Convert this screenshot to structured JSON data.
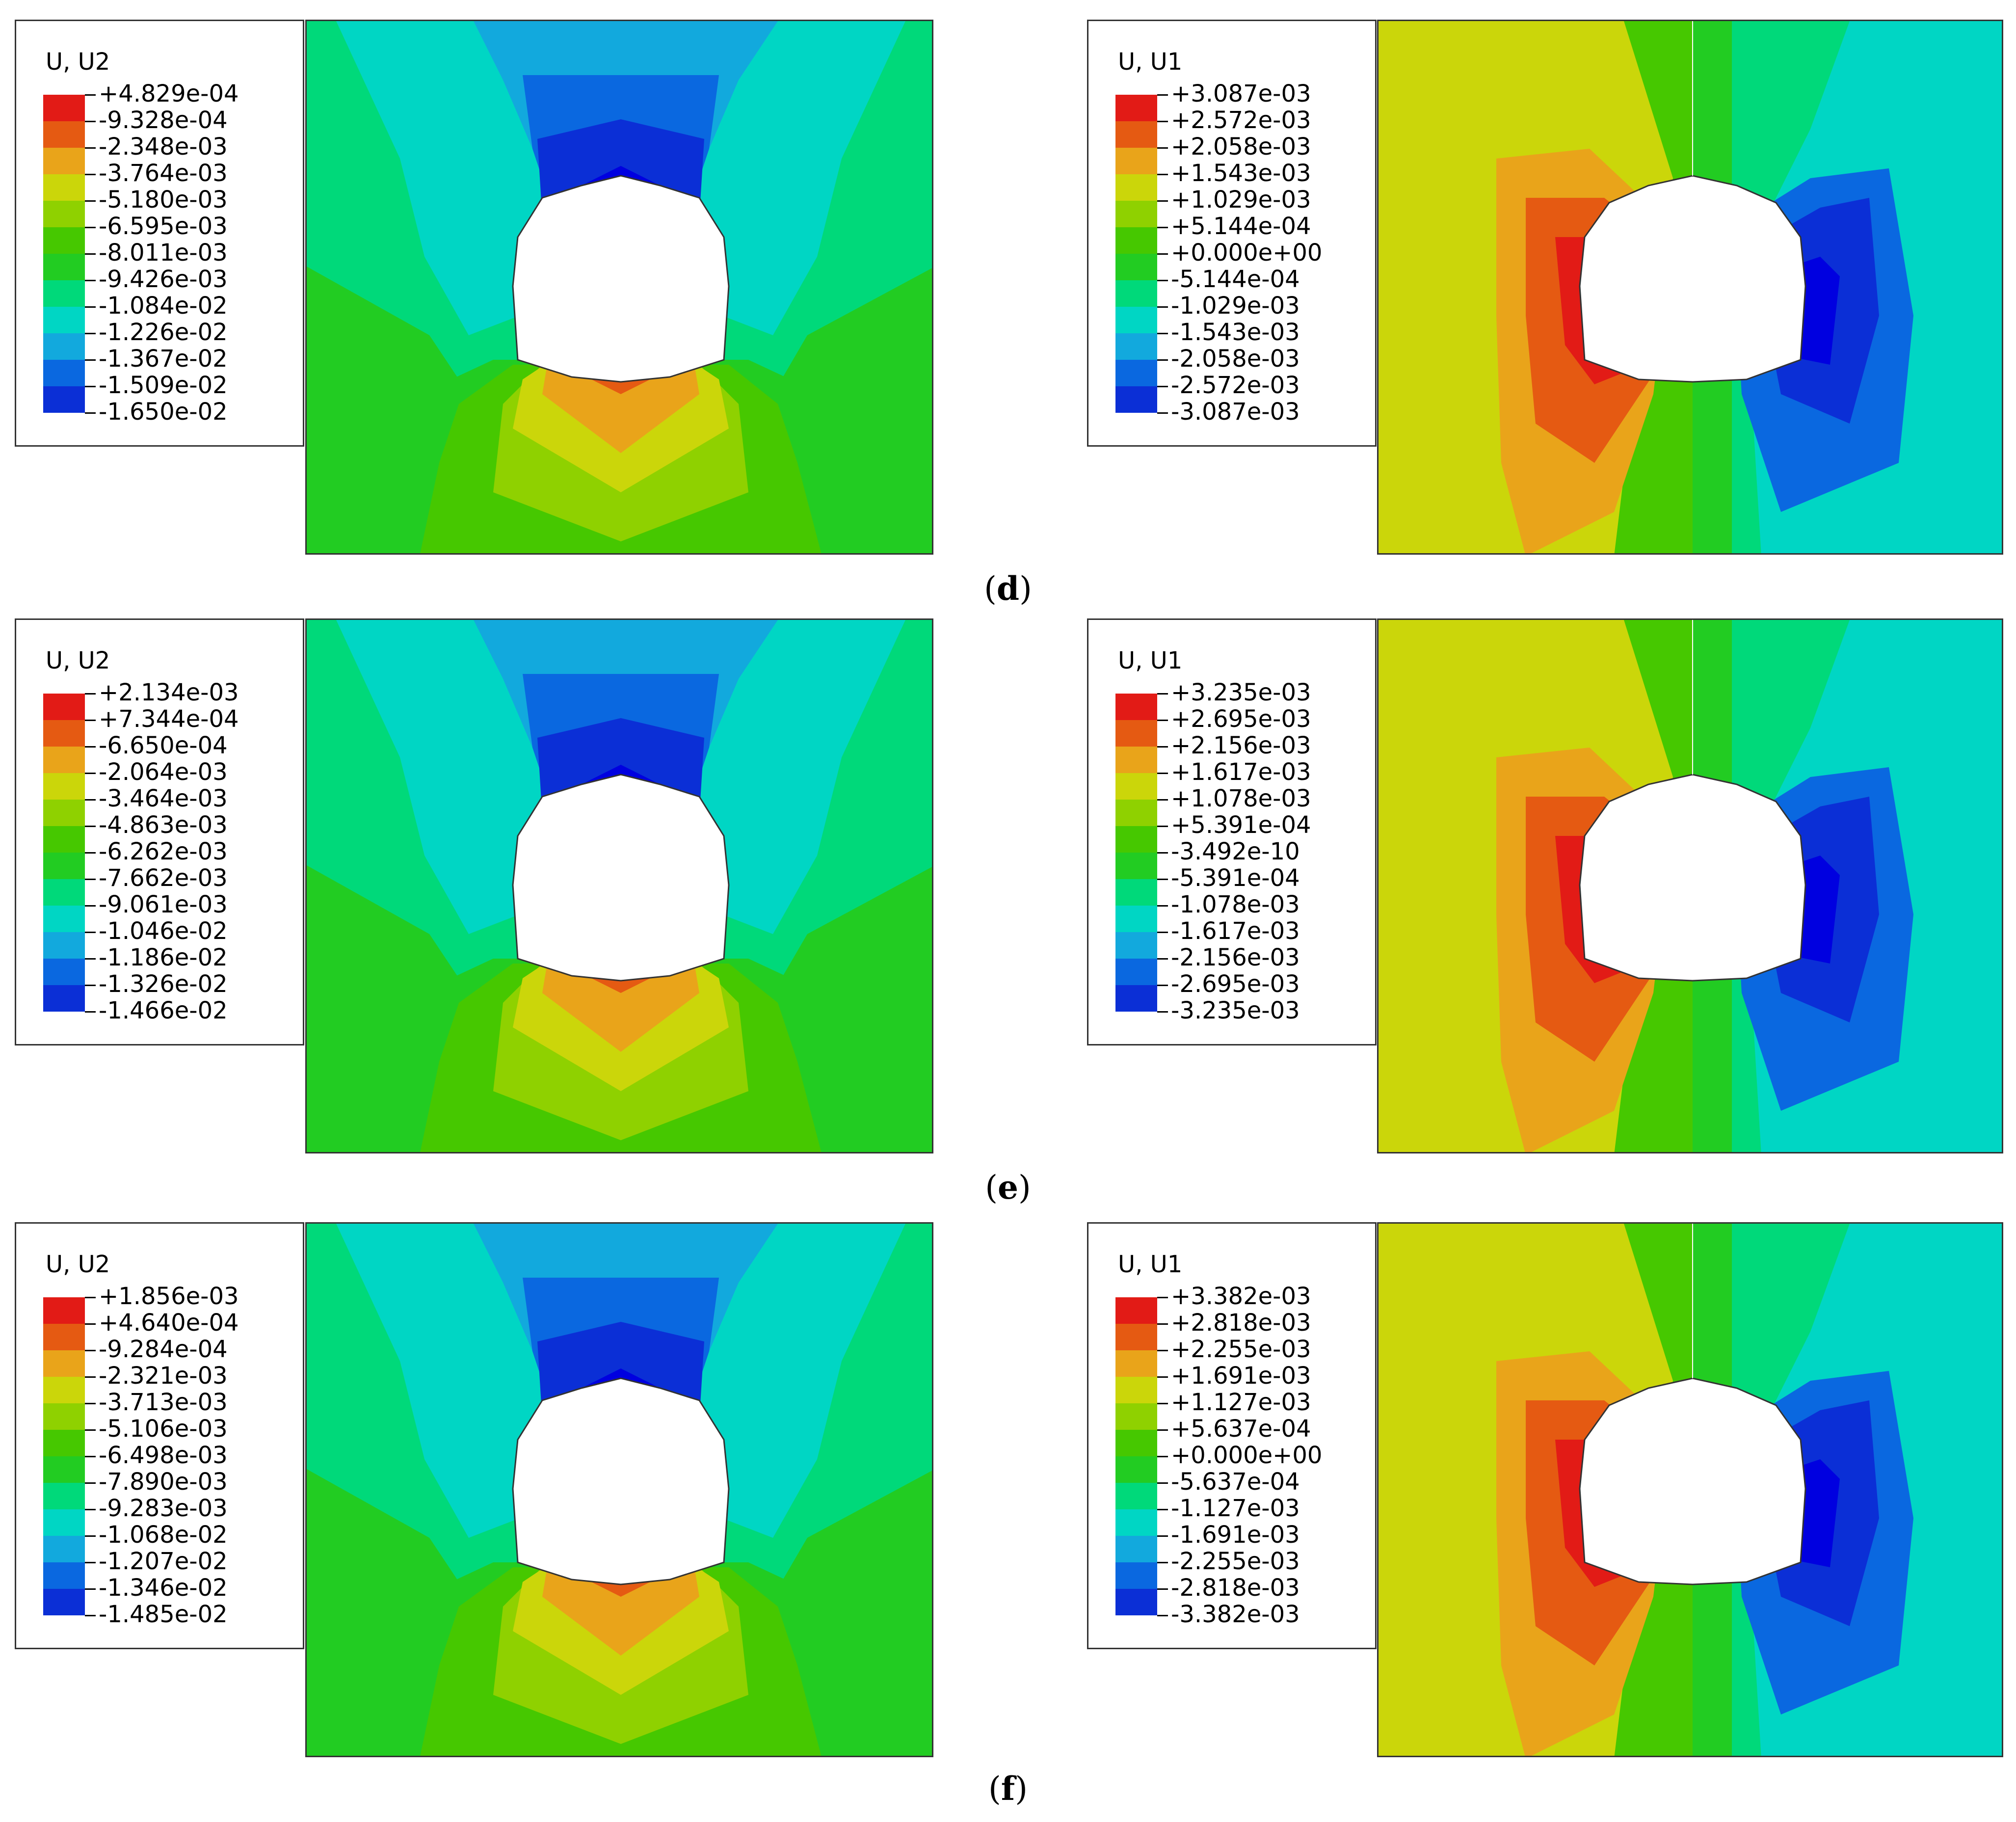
{
  "panels": [
    {
      "id": "d",
      "caption_open": "(",
      "caption_letter": "d",
      "caption_close": ")",
      "left": {
        "title": "U, U2",
        "labels": [
          "+4.829e-04",
          "-9.328e-04",
          "-2.348e-03",
          "-3.764e-03",
          "-5.180e-03",
          "-6.595e-03",
          "-8.011e-03",
          "-9.426e-03",
          "-1.084e-02",
          "-1.226e-02",
          "-1.367e-02",
          "-1.509e-02",
          "-1.650e-02"
        ]
      },
      "right": {
        "title": "U, U1",
        "labels": [
          "+3.087e-03",
          "+2.572e-03",
          "+2.058e-03",
          "+1.543e-03",
          "+1.029e-03",
          "+5.144e-04",
          "+0.000e+00",
          "-5.144e-04",
          "-1.029e-03",
          "-1.543e-03",
          "-2.058e-03",
          "-2.572e-03",
          "-3.087e-03"
        ]
      }
    },
    {
      "id": "e",
      "caption_open": "(",
      "caption_letter": "e",
      "caption_close": ")",
      "left": {
        "title": "U, U2",
        "labels": [
          "+2.134e-03",
          "+7.344e-04",
          "-6.650e-04",
          "-2.064e-03",
          "-3.464e-03",
          "-4.863e-03",
          "-6.262e-03",
          "-7.662e-03",
          "-9.061e-03",
          "-1.046e-02",
          "-1.186e-02",
          "-1.326e-02",
          "-1.466e-02"
        ]
      },
      "right": {
        "title": "U, U1",
        "labels": [
          "+3.235e-03",
          "+2.695e-03",
          "+2.156e-03",
          "+1.617e-03",
          "+1.078e-03",
          "+5.391e-04",
          "-3.492e-10",
          "-5.391e-04",
          "-1.078e-03",
          "-1.617e-03",
          "-2.156e-03",
          "-2.695e-03",
          "-3.235e-03"
        ]
      }
    },
    {
      "id": "f",
      "caption_open": "(",
      "caption_letter": "f",
      "caption_close": ")",
      "left": {
        "title": "U, U2",
        "labels": [
          "+1.856e-03",
          "+4.640e-04",
          "-9.284e-04",
          "-2.321e-03",
          "-3.713e-03",
          "-5.106e-03",
          "-6.498e-03",
          "-7.890e-03",
          "-9.283e-03",
          "-1.068e-02",
          "-1.207e-02",
          "-1.346e-02",
          "-1.485e-02"
        ]
      },
      "right": {
        "title": "U, U1",
        "labels": [
          "+3.382e-03",
          "+2.818e-03",
          "+2.255e-03",
          "+1.691e-03",
          "+1.127e-03",
          "+5.637e-04",
          "+0.000e+00",
          "-5.637e-04",
          "-1.127e-03",
          "-1.691e-03",
          "-2.255e-03",
          "-2.818e-03",
          "-3.382e-03"
        ]
      }
    }
  ],
  "colormap": [
    "#ff0000",
    "#ff5a00",
    "#ffb400",
    "#f0ff00",
    "#96ff00",
    "#3cff00",
    "#00ff1e",
    "#00ff78",
    "#00ffd2",
    "#00d2ff",
    "#0078ff",
    "#001eff",
    "#0000ff"
  ]
}
